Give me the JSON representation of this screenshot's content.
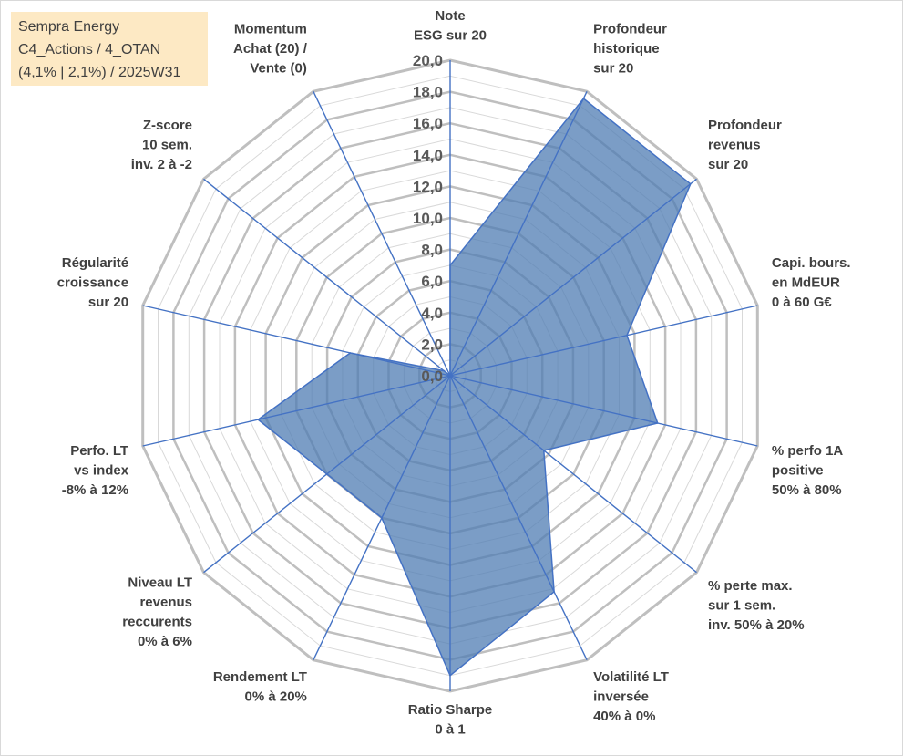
{
  "title_box": {
    "lines": [
      "Sempra Energy",
      "C4_Actions / 4_OTAN",
      "(4,1% | 2,1%) / 2025W31"
    ]
  },
  "colors": {
    "fill": "#4f7cb3",
    "stroke": "#4472c4",
    "spoke": "#4472c4",
    "grid_major": "#bfbfbf",
    "grid_minor": "#d9d9d9",
    "title_bg": "#fde9c4"
  },
  "chart_data": {
    "type": "radar",
    "title": "",
    "rmin": 0,
    "rmax": 20,
    "major_step": 2,
    "minor_step": 1,
    "tick_labels": [
      "0,0",
      "2,0",
      "4,0",
      "6,0",
      "8,0",
      "10,0",
      "12,0",
      "14,0",
      "16,0",
      "18,0",
      "20,0"
    ],
    "axes": [
      "Note\nESG sur 20",
      "Profondeur\nhistorique\nsur 20",
      "Profondeur\nrevenus\nsur 20",
      "Capi. bours.\nen MdEUR\n0 à 60 G€",
      "% perfo 1A\npositive\n50% à 80%",
      "% perte max.\nsur 1 sem.\ninv. 50% à 20%",
      "Volatilité LT\ninversée\n40% à 0%",
      "Ratio Sharpe\n0 à 1",
      "Rendement LT\n0% à 20%",
      "Niveau LT\nrevenus\nreccurents\n0% à 6%",
      "Perfo. LT\nvs index\n-8% à 12%",
      "Régularité\ncroissance\nsur 20",
      "Z-score\n10 sem.\ninv. 2 à -2",
      "Momentum\nAchat (20) /\nVente (0)"
    ],
    "grid": true,
    "legend": "none",
    "series": [
      {
        "values": [
          7.0,
          19.5,
          19.5,
          11.5,
          13.5,
          7.6,
          15.2,
          19.0,
          10.0,
          10.0,
          12.5,
          6.5,
          0.5,
          0.0
        ]
      }
    ]
  }
}
